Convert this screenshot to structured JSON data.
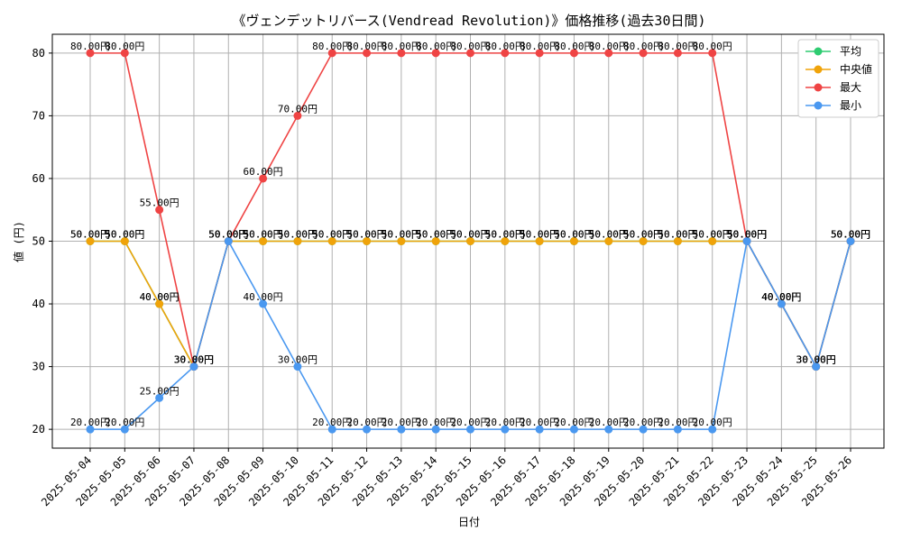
{
  "chart_data": {
    "type": "line",
    "title": "《ヴェンデットリバース(Vendread Revolution)》価格推移(過去30日間)",
    "xlabel": "日付",
    "ylabel": "値 (円)",
    "ylim": [
      17,
      83
    ],
    "yticks": [
      20,
      30,
      40,
      50,
      60,
      70,
      80
    ],
    "grid": true,
    "legend_position": "top-right",
    "value_suffix": "円",
    "categories": [
      "2025-05-04",
      "2025-05-05",
      "2025-05-06",
      "2025-05-07",
      "2025-05-08",
      "2025-05-09",
      "2025-05-10",
      "2025-05-11",
      "2025-05-12",
      "2025-05-13",
      "2025-05-14",
      "2025-05-15",
      "2025-05-16",
      "2025-05-17",
      "2025-05-18",
      "2025-05-19",
      "2025-05-20",
      "2025-05-21",
      "2025-05-22",
      "2025-05-23",
      "2025-05-24",
      "2025-05-25",
      "2025-05-26"
    ],
    "series": [
      {
        "name": "平均",
        "color": "#2ecc71",
        "values": [
          50,
          50,
          40,
          30,
          50,
          50,
          50,
          50,
          50,
          50,
          50,
          50,
          50,
          50,
          50,
          50,
          50,
          50,
          50,
          50,
          40,
          30,
          50
        ]
      },
      {
        "name": "中央値",
        "color": "#f0a30a",
        "values": [
          50,
          50,
          40,
          30,
          50,
          50,
          50,
          50,
          50,
          50,
          50,
          50,
          50,
          50,
          50,
          50,
          50,
          50,
          50,
          50,
          40,
          30,
          50
        ]
      },
      {
        "name": "最大",
        "color": "#ef4444",
        "values": [
          80,
          80,
          55,
          30,
          50,
          60,
          70,
          80,
          80,
          80,
          80,
          80,
          80,
          80,
          80,
          80,
          80,
          80,
          80,
          50,
          40,
          30,
          50
        ]
      },
      {
        "name": "最小",
        "color": "#4a98f0",
        "values": [
          20,
          20,
          25,
          30,
          50,
          40,
          30,
          20,
          20,
          20,
          20,
          20,
          20,
          20,
          20,
          20,
          20,
          20,
          20,
          50,
          40,
          30,
          50
        ]
      }
    ]
  }
}
